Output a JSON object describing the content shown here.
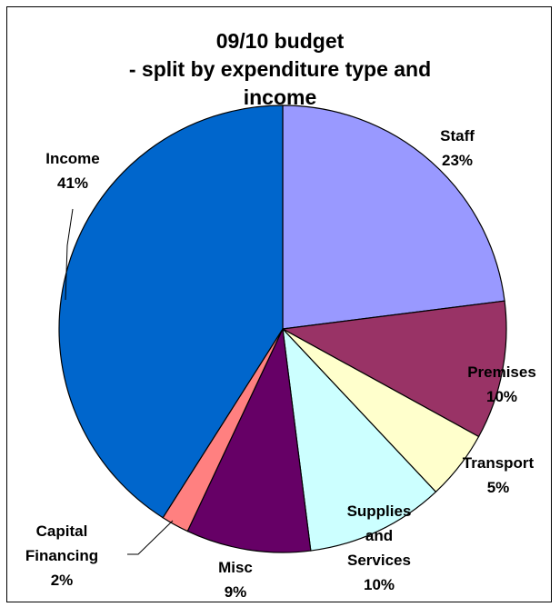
{
  "chart_data": {
    "type": "pie",
    "title_lines": [
      "09/10 budget",
      "- split by expenditure type and",
      "income"
    ],
    "slices": [
      {
        "name": "Staff",
        "label": "23%",
        "value": 23,
        "color": "#9999ff"
      },
      {
        "name": "Premises",
        "label": "10%",
        "value": 10,
        "color": "#993366"
      },
      {
        "name": "Transport",
        "label": "5%",
        "value": 5,
        "color": "#ffffcc"
      },
      {
        "name": "Supplies and Services",
        "name_lines": [
          "Supplies",
          "and",
          "Services"
        ],
        "label": "10%",
        "value": 10,
        "color": "#ccffff"
      },
      {
        "name": "Misc",
        "label": "9%",
        "value": 9,
        "color": "#660066"
      },
      {
        "name": "Capital Financing",
        "name_lines": [
          "Capital",
          "Financing"
        ],
        "label": "2%",
        "value": 2,
        "color": "#ff8080"
      },
      {
        "name": "Income",
        "label": "41%",
        "value": 41,
        "color": "#0066cc"
      }
    ],
    "legend": "none"
  }
}
